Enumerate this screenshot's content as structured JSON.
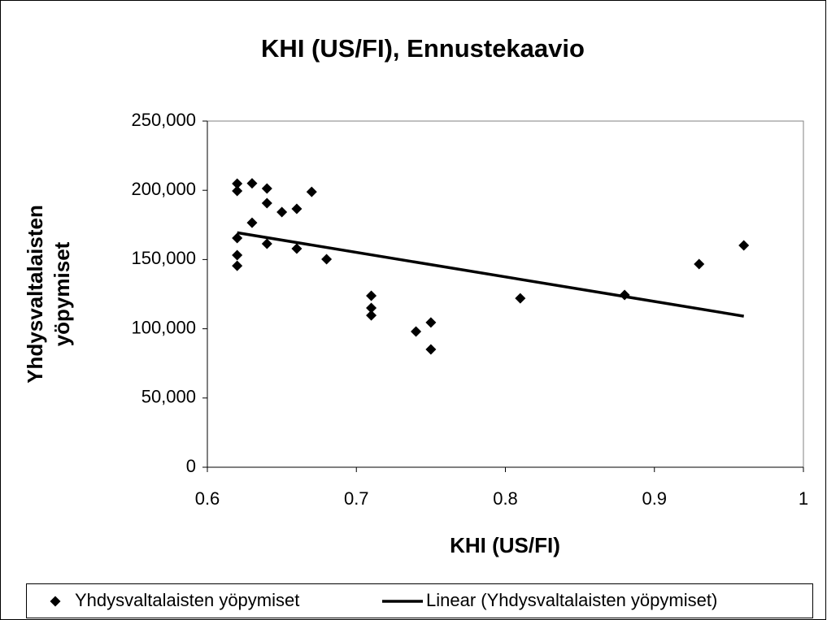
{
  "chart_data": {
    "type": "scatter",
    "title": "KHI (US/FI), Ennustekaavio",
    "x_label": "KHI (US/FI)",
    "y_label": [
      "Yhdysvaltalaisten",
      "yöpymiset"
    ],
    "series": [
      {
        "name": "Yhdysvaltalaisten yöpymiset",
        "color": "#000000",
        "x": [
          0.62,
          0.62,
          0.62,
          0.62,
          0.62,
          0.63,
          0.63,
          0.64,
          0.64,
          0.64,
          0.65,
          0.66,
          0.66,
          0.67,
          0.68,
          0.71,
          0.71,
          0.71,
          0.74,
          0.75,
          0.75,
          0.81,
          0.88,
          0.93,
          0.96
        ],
        "values": [
          204800,
          199500,
          165500,
          153200,
          145500,
          205000,
          176600,
          201300,
          190700,
          161400,
          184300,
          186600,
          157900,
          198900,
          150200,
          123800,
          115000,
          109700,
          98000,
          104500,
          85100,
          122000,
          124400,
          146700,
          160200
        ]
      }
    ],
    "trendline": {
      "name": "Linear (Yhdysvaltalaisten yöpymiset)",
      "fit": "linear",
      "color": "#000000"
    },
    "xlim": [
      0.6,
      1
    ],
    "xticks": [
      0.6,
      0.7,
      0.8,
      0.9,
      1
    ],
    "ylim": [
      0,
      250000
    ],
    "yticks": [
      0,
      {
        "value": 50000,
        "label": "50,000"
      },
      {
        "value": 100000,
        "label": "100,000"
      },
      {
        "value": 150000,
        "label": "150,000"
      },
      {
        "value": 200000,
        "label": "200,000"
      },
      {
        "value": 250000,
        "label": "250,000"
      }
    ],
    "legend": "bottom"
  }
}
